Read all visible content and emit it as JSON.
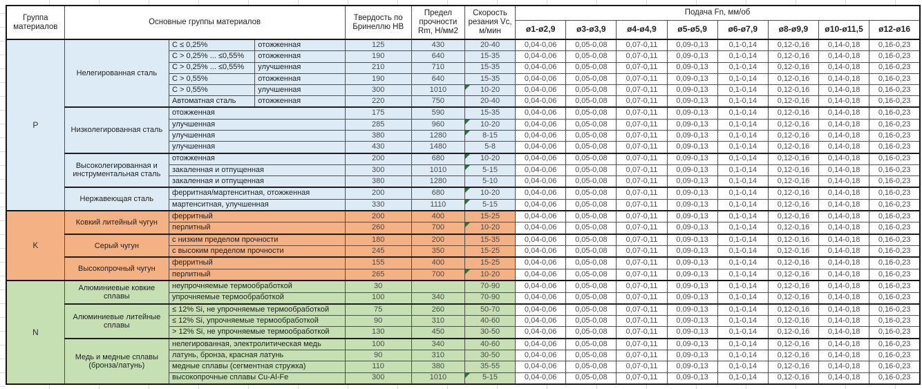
{
  "header": {
    "group_col": "Группа материалов",
    "families_col": "Основные группы материалов",
    "hardness_col": "Твердость по Бринеллю HB",
    "strength_col": "Предел прочности Rm, Н/мм2",
    "speed_col": "Скорость резания Vc, м/мин",
    "feed_col": "Подача Fn, мм/об",
    "feed_diameters": [
      "ø1-ø2,9",
      "ø3-ø3,9",
      "ø4-ø4,9",
      "ø5-ø5,9",
      "ø6-ø7,9",
      "ø8-ø9,9",
      "ø10-ø11,5",
      "ø12-ø16"
    ]
  },
  "feed_values": [
    "0,04-0,06",
    "0,05-0,08",
    "0,07-0,11",
    "0,09-0,13",
    "0,1-0,14",
    "0,12-0,16",
    "0,14-0,18",
    "0,16-0,23"
  ],
  "colors": {
    "group_p_fill": "#DDEBF7",
    "group_k_fill": "#F4B183",
    "group_n_fill": "#C6E0B4",
    "error_marker": "#1F7A33"
  },
  "groups": [
    {
      "letter": "P",
      "color": "#DDEBF7",
      "families": [
        {
          "name": "Нелегированная сталь",
          "rows": [
            {
              "detail": "C ≤ 0,25%",
              "state": "отожженная",
              "hb": "125",
              "rm": "430",
              "vc": "20-40",
              "marker": false
            },
            {
              "detail": "C > 0,25% ... ≤0,55%",
              "state": "отожженная",
              "hb": "190",
              "rm": "640",
              "vc": "15-35",
              "marker": false
            },
            {
              "detail": "C > 0,25% ... ≤0,55%",
              "state": "улучшенная",
              "hb": "210",
              "rm": "710",
              "vc": "15-35",
              "marker": false
            },
            {
              "detail": "C > 0,55%",
              "state": "отожженная",
              "hb": "190",
              "rm": "640",
              "vc": "15-35",
              "marker": false
            },
            {
              "detail": "C > 0,55%",
              "state": "улучшенная",
              "hb": "300",
              "rm": "1010",
              "vc": "10-20",
              "marker": true
            },
            {
              "detail": "Автоматная сталь",
              "state": "отожженная",
              "hb": "220",
              "rm": "750",
              "vc": "20-40",
              "marker": false
            }
          ]
        },
        {
          "name": "Низколегированная сталь",
          "rows": [
            {
              "desc": "отожженная",
              "hb": "175",
              "rm": "590",
              "vc": "15-35",
              "marker": false
            },
            {
              "desc": "улучшенная",
              "hb": "285",
              "rm": "960",
              "vc": "10-20",
              "marker": true
            },
            {
              "desc": "улучшенная",
              "hb": "380",
              "rm": "1280",
              "vc": "8-15",
              "marker": true
            },
            {
              "desc": "улучшенная",
              "hb": "430",
              "rm": "1480",
              "vc": "5-8",
              "marker": false
            }
          ]
        },
        {
          "name": "Высоколегированная и инструментальная сталь",
          "rows": [
            {
              "desc": "отожженная",
              "hb": "200",
              "rm": "680",
              "vc": "10-20",
              "marker": true
            },
            {
              "desc": "закаленная и отпущенная",
              "hb": "300",
              "rm": "1010",
              "vc": "5-15",
              "marker": true
            },
            {
              "desc": "закаленная и отпущенная",
              "hb": "380",
              "rm": "1280",
              "vc": "5-10",
              "marker": false
            }
          ]
        },
        {
          "name": "Нержавеющая сталь",
          "rows": [
            {
              "desc": "ферритная/мартенситная, отожженная",
              "hb": "200",
              "rm": "680",
              "vc": "10-20",
              "marker": true
            },
            {
              "desc": "мартенситная, улучшенная",
              "hb": "330",
              "rm": "1110",
              "vc": "5-15",
              "marker": true
            }
          ]
        }
      ]
    },
    {
      "letter": "K",
      "color": "#F4B183",
      "families": [
        {
          "name": "Ковкий литейный чугун",
          "rows": [
            {
              "desc": "ферритный",
              "hb": "200",
              "rm": "400",
              "vc": "15-25",
              "marker": false
            },
            {
              "desc": "перлитный",
              "hb": "260",
              "rm": "700",
              "vc": "10-20",
              "marker": true
            }
          ]
        },
        {
          "name": "Серый чугун",
          "rows": [
            {
              "desc": "с низким пределом прочности",
              "hb": "180",
              "rm": "200",
              "vc": "15-35",
              "marker": false
            },
            {
              "desc": "с высоким пределом прочности",
              "hb": "245",
              "rm": "350",
              "vc": "15-25",
              "marker": false
            }
          ]
        },
        {
          "name": "Высокопрочный чугун",
          "rows": [
            {
              "desc": "ферритный",
              "hb": "155",
              "rm": "400",
              "vc": "15-25",
              "marker": false
            },
            {
              "desc": "перлитный",
              "hb": "265",
              "rm": "700",
              "vc": "10-20",
              "marker": true
            }
          ]
        }
      ]
    },
    {
      "letter": "N",
      "color": "#C6E0B4",
      "families": [
        {
          "name": "Алюминиевые ковкие сплавы",
          "rows": [
            {
              "desc": "неупрочняемые термообработкой",
              "hb": "30",
              "rm": "",
              "vc": "70-90",
              "marker": false
            },
            {
              "desc": "упрочняемые термообработкой",
              "hb": "100",
              "rm": "340",
              "vc": "70-90",
              "marker": false
            }
          ]
        },
        {
          "name": "Алюминиевые литейные сплавы",
          "rows": [
            {
              "desc": "≤ 12% Si, не упрочняемые термообработкой",
              "hb": "75",
              "rm": "260",
              "vc": "50-70",
              "marker": false
            },
            {
              "desc": "≤ 12% Si, упрочняемые термообработкой",
              "hb": "90",
              "rm": "310",
              "vc": "40-60",
              "marker": false
            },
            {
              "desc": "> 12% Si, не упрочняемые термообработкой",
              "hb": "130",
              "rm": "450",
              "vc": "30-50",
              "marker": false
            }
          ]
        },
        {
          "name": "Медь и медные сплавы (бронза/латунь)",
          "rows": [
            {
              "desc": "нелегированная, электролитическая медь",
              "hb": "100",
              "rm": "340",
              "vc": "40-60",
              "marker": false
            },
            {
              "desc": "латунь, бронза, красная латунь",
              "hb": "90",
              "rm": "310",
              "vc": "30-50",
              "marker": false
            },
            {
              "desc": "медные сплавы (сегментная стружка)",
              "hb": "110",
              "rm": "380",
              "vc": "35-55",
              "marker": false
            },
            {
              "desc": "высокопрочные сплавы Cu-Al-Fe",
              "hb": "300",
              "rm": "1010",
              "vc": "5-15",
              "marker": true
            }
          ]
        }
      ]
    }
  ]
}
